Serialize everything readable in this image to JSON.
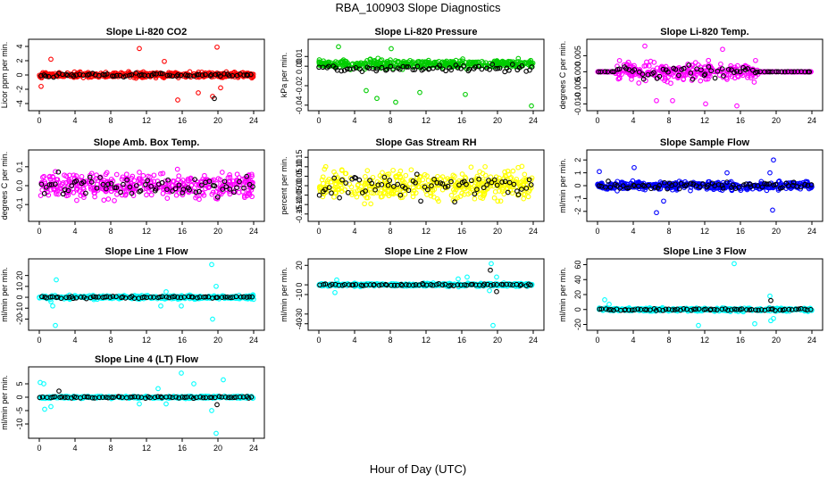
{
  "figure": {
    "title": "RBA_100903  Slope Diagnostics",
    "xlabel": "Hour of Day (UTC)"
  },
  "chart_data": [
    {
      "type": "scatter",
      "title": "Slope Li-820 CO2",
      "xlabel": "",
      "ylabel": "Licor ppm per min.",
      "xlim": [
        0,
        24
      ],
      "xticks": [
        0,
        4,
        8,
        12,
        16,
        20,
        24
      ],
      "ylim": [
        -4.5,
        4.5
      ],
      "yticks": [
        "-4",
        "-2",
        "0",
        "2",
        "4"
      ],
      "ytick_values": [
        -4,
        -2,
        0,
        2,
        4
      ],
      "series": [
        {
          "color": "#ff0000",
          "spread": 0.35,
          "outliers": [
            [
              1.3,
              2.2
            ],
            [
              11.2,
              3.7
            ],
            [
              15.5,
              -3.5
            ],
            [
              17.8,
              -2.5
            ],
            [
              19.4,
              -3.0
            ],
            [
              19.9,
              3.9
            ],
            [
              20.3,
              -1.8
            ],
            [
              14.0,
              1.9
            ],
            [
              0.2,
              -1.6
            ]
          ]
        },
        {
          "color": "#000000",
          "spread": 0.25,
          "outliers": [
            [
              19.6,
              -3.3
            ]
          ]
        }
      ]
    },
    {
      "type": "scatter",
      "title": "Slope Li-820 Pressure",
      "xlabel": "",
      "ylabel": "kPa per min.",
      "xlim": [
        0,
        24
      ],
      "xticks": [
        0,
        4,
        8,
        12,
        16,
        20,
        24
      ],
      "ylim": [
        -0.042,
        0.024
      ],
      "yticks": [
        "-0.04",
        "-0.02",
        "0.00",
        "0.01"
      ],
      "ytick_values": [
        -0.04,
        -0.02,
        0.0,
        0.01
      ],
      "series": [
        {
          "color": "#00cc00",
          "spread": 0.004,
          "offset": 0.002,
          "outliers": [
            [
              5.3,
              -0.025
            ],
            [
              6.5,
              -0.033
            ],
            [
              8.6,
              -0.037
            ],
            [
              11.3,
              -0.027
            ],
            [
              16.4,
              -0.029
            ],
            [
              23.8,
              -0.041
            ],
            [
              8.1,
              0.018
            ],
            [
              2.2,
              0.02
            ]
          ]
        },
        {
          "color": "#000000",
          "spread": 0.003,
          "offset": -0.002,
          "outliers": []
        }
      ]
    },
    {
      "type": "scatter",
      "title": "Slope Li-820 Temp.",
      "xlabel": "",
      "ylabel": "degrees C per min.",
      "xlim": [
        0,
        24
      ],
      "xticks": [
        0,
        4,
        8,
        12,
        16,
        20,
        24
      ],
      "ylim": [
        -0.011,
        0.009
      ],
      "yticks": [
        "-0.010",
        "-0.005",
        "0.000",
        "0.005"
      ],
      "ytick_values": [
        -0.01,
        -0.005,
        0.0,
        0.005
      ],
      "series": [
        {
          "color": "#ff00ff",
          "spread": 0.0025,
          "active": [
            2,
            18
          ],
          "outliers": [
            [
              5.3,
              0.008
            ],
            [
              6.6,
              -0.009
            ],
            [
              8.4,
              -0.009
            ],
            [
              12.1,
              -0.01
            ],
            [
              14.0,
              0.007
            ],
            [
              15.6,
              -0.011
            ]
          ]
        },
        {
          "color": "#000000",
          "spread": 0.002,
          "active": [
            2,
            18
          ],
          "outliers": []
        }
      ]
    },
    {
      "type": "scatter",
      "title": "Slope Amb. Box Temp.",
      "xlabel": "",
      "ylabel": "degrees C per min.",
      "xlim": [
        0,
        24
      ],
      "xticks": [
        0,
        4,
        8,
        12,
        16,
        20,
        24
      ],
      "ylim": [
        -0.17,
        0.17
      ],
      "yticks": [
        "-0.1",
        "0.0",
        "0.1"
      ],
      "ytick_values": [
        -0.1,
        0.0,
        0.1
      ],
      "series": [
        {
          "color": "#ff00ff",
          "spread": 0.06,
          "outliers": []
        },
        {
          "color": "#000000",
          "spread": 0.05,
          "outliers": []
        }
      ]
    },
    {
      "type": "scatter",
      "title": "Slope Gas Stream RH",
      "xlabel": "",
      "ylabel": "percent per min.",
      "xlim": [
        0,
        24
      ],
      "xticks": [
        0,
        4,
        8,
        12,
        16,
        20,
        24
      ],
      "ylim": [
        -0.17,
        0.17
      ],
      "yticks": [
        "-0.15",
        "-0.10",
        "-0.05",
        "0.00",
        "0.05",
        "0.10",
        "0.15"
      ],
      "ytick_values": [
        -0.15,
        -0.1,
        -0.05,
        0.0,
        0.05,
        0.1,
        0.15
      ],
      "series": [
        {
          "color": "#ffff00",
          "spread": 0.07,
          "outliers": []
        },
        {
          "color": "#000000",
          "spread": 0.06,
          "outliers": []
        }
      ]
    },
    {
      "type": "scatter",
      "title": "Slope Sample Flow",
      "xlabel": "",
      "ylabel": "ml/min per min.",
      "xlim": [
        0,
        24
      ],
      "xticks": [
        0,
        4,
        8,
        12,
        16,
        20,
        24
      ],
      "ylim": [
        -2.5,
        2.5
      ],
      "yticks": [
        "-2",
        "-1",
        "0",
        "1",
        "2"
      ],
      "ytick_values": [
        -2,
        -1,
        0,
        1,
        2
      ],
      "series": [
        {
          "color": "#0000ff",
          "spread": 0.3,
          "outliers": [
            [
              0.2,
              1.1
            ],
            [
              4.1,
              1.4
            ],
            [
              6.6,
              -2.1
            ],
            [
              7.4,
              -1.2
            ],
            [
              14.5,
              1.0
            ],
            [
              19.6,
              -1.9
            ],
            [
              19.7,
              2.0
            ],
            [
              19.3,
              1.0
            ]
          ]
        },
        {
          "color": "#000000",
          "spread": 0.25,
          "outliers": []
        }
      ]
    },
    {
      "type": "scatter",
      "title": "Slope Line 1 Flow",
      "xlabel": "",
      "ylabel": "ml/min per min.",
      "xlim": [
        0,
        24
      ],
      "xticks": [
        0,
        4,
        8,
        12,
        16,
        20,
        24
      ],
      "ylim": [
        -27,
        32
      ],
      "yticks": [
        "-20",
        "-10",
        "0",
        "10",
        "20"
      ],
      "ytick_values": [
        -20,
        -10,
        0,
        10,
        20
      ],
      "series": [
        {
          "color": "#00ffff",
          "spread": 1.5,
          "outliers": [
            [
              1.9,
              16
            ],
            [
              1.8,
              -27
            ],
            [
              1.5,
              -8
            ],
            [
              19.3,
              30
            ],
            [
              19.4,
              -20
            ],
            [
              14.2,
              5
            ],
            [
              13.6,
              -8
            ],
            [
              15.9,
              -8
            ],
            [
              19.8,
              10
            ],
            [
              1.3,
              -4
            ]
          ]
        },
        {
          "color": "#000000",
          "spread": 0.8,
          "outliers": []
        }
      ]
    },
    {
      "type": "scatter",
      "title": "Slope Line 2 Flow",
      "xlabel": "",
      "ylabel": "ml/min per min.",
      "xlim": [
        0,
        24
      ],
      "xticks": [
        0,
        4,
        8,
        12,
        16,
        20,
        24
      ],
      "ylim": [
        -43,
        23
      ],
      "yticks": [
        "-40",
        "-30",
        "-10",
        "0",
        "20"
      ],
      "ytick_values": [
        -40,
        -30,
        -10,
        0,
        20
      ],
      "series": [
        {
          "color": "#00ffff",
          "spread": 1.5,
          "outliers": [
            [
              19.3,
              22
            ],
            [
              19.5,
              -42
            ],
            [
              15.6,
              6
            ],
            [
              16.6,
              8
            ],
            [
              19.1,
              -6
            ],
            [
              1.8,
              -8
            ],
            [
              2.0,
              5
            ],
            [
              19.9,
              8
            ]
          ]
        },
        {
          "color": "#000000",
          "spread": 0.8,
          "outliers": [
            [
              19.2,
              15
            ],
            [
              19.9,
              -7
            ]
          ]
        }
      ]
    },
    {
      "type": "scatter",
      "title": "Slope Line 3 Flow",
      "xlabel": "",
      "ylabel": "ml/min per min.",
      "xlim": [
        0,
        24
      ],
      "xticks": [
        0,
        4,
        8,
        12,
        16,
        20,
        24
      ],
      "ylim": [
        -23,
        63
      ],
      "yticks": [
        "-20",
        "0",
        "20",
        "40",
        "60"
      ],
      "ytick_values": [
        -20,
        0,
        20,
        40,
        60
      ],
      "series": [
        {
          "color": "#00ffff",
          "spread": 2,
          "outliers": [
            [
              15.3,
              62
            ],
            [
              11.3,
              -22
            ],
            [
              17.6,
              -19
            ],
            [
              19.4,
              -15
            ],
            [
              19.7,
              -12
            ],
            [
              0.8,
              13
            ],
            [
              19.3,
              18
            ],
            [
              1.3,
              7
            ]
          ]
        },
        {
          "color": "#000000",
          "spread": 1,
          "outliers": [
            [
              19.4,
              12
            ]
          ]
        }
      ]
    },
    {
      "type": "scatter",
      "title": "Slope Line 4 (LT) Flow",
      "xlabel": "",
      "ylabel": "ml/min per min.",
      "xlim": [
        0,
        24
      ],
      "xticks": [
        0,
        4,
        8,
        12,
        16,
        20,
        24
      ],
      "ylim": [
        -14,
        10
      ],
      "yticks": [
        "-10",
        "-5",
        "0",
        "5"
      ],
      "ytick_values": [
        -10,
        -5,
        0,
        5
      ],
      "series": [
        {
          "color": "#00ffff",
          "spread": 0.4,
          "outliers": [
            [
              0.1,
              5.5
            ],
            [
              0.5,
              5.0
            ],
            [
              0.6,
              -4.5
            ],
            [
              1.3,
              -3.5
            ],
            [
              15.9,
              9.0
            ],
            [
              17.3,
              5.0
            ],
            [
              19.3,
              -5.0
            ],
            [
              19.8,
              -13.5
            ],
            [
              20.6,
              6.5
            ],
            [
              13.3,
              3.2
            ],
            [
              11.2,
              -2.5
            ],
            [
              14.2,
              -2.5
            ]
          ]
        },
        {
          "color": "#000000",
          "spread": 0.3,
          "outliers": [
            [
              2.2,
              2.3
            ],
            [
              19.9,
              -2.8
            ]
          ]
        }
      ]
    }
  ]
}
